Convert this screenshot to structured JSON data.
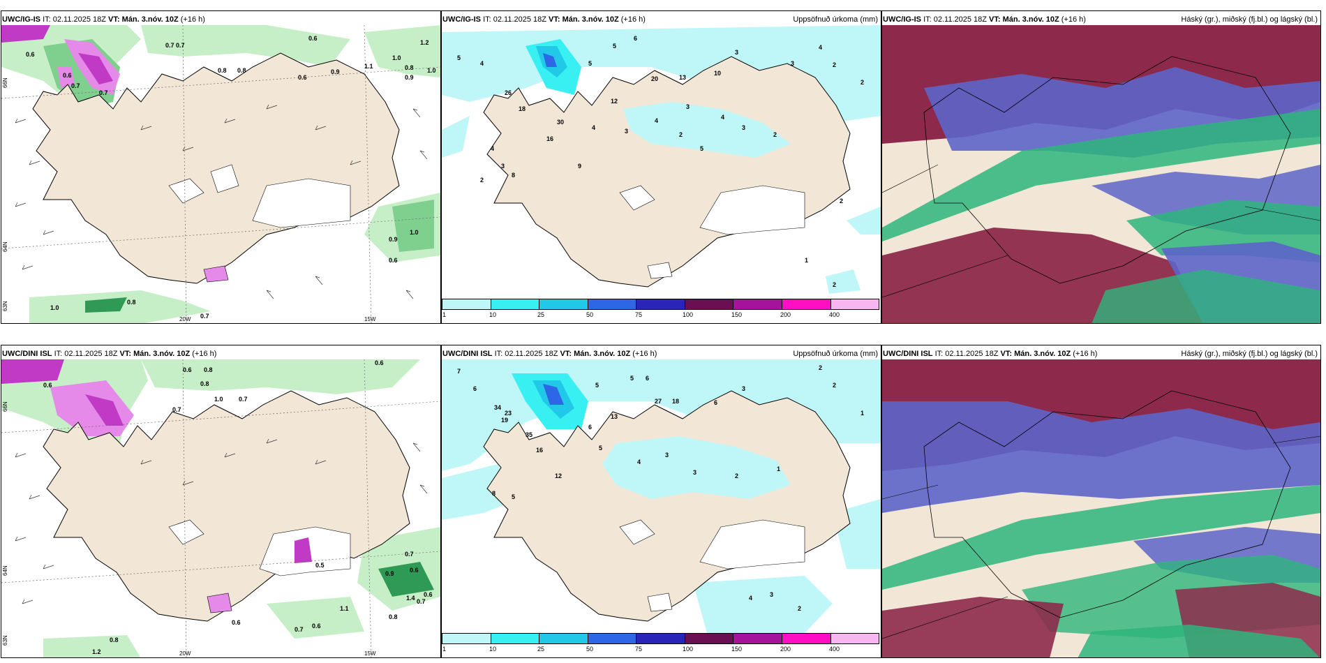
{
  "rows": [
    {
      "model_id": "UWC/IG-IS",
      "wind_panel": {
        "header_model": "UWC/IG-IS",
        "header_it": "IT: 02.11.2025 18Z",
        "header_vt": "VT: Mán. 3.nóv. 10Z",
        "header_lead": "(+16 h)",
        "lat_labels": [
          "66N",
          "64N",
          "63N"
        ],
        "lon_labels": [
          "20W",
          "15W"
        ],
        "values": [
          "0.6",
          "0.7",
          "0.7",
          "0.6",
          "0.8",
          "0.6",
          "0.9",
          "1.1",
          "1.0",
          "0.8",
          "1.2",
          "0.9",
          "0.6",
          "1.0",
          "0.8",
          "0.7",
          "0.7",
          "0.9",
          "1.0",
          "0.6",
          "1.0",
          "0.8",
          "0.7"
        ]
      },
      "precip_panel": {
        "header_model": "UWC/IG-IS",
        "header_it": "IT: 02.11.2025 18Z",
        "header_vt": "VT: Mán. 3.nóv. 10Z",
        "header_lead": "(+16 h)",
        "header_right": "Uppsöfnuð úrkoma (mm)",
        "values": [
          "6",
          "5",
          "5",
          "4",
          "5",
          "12",
          "20",
          "13",
          "10",
          "3",
          "4",
          "3",
          "2",
          "2",
          "3",
          "4",
          "3",
          "2",
          "26",
          "18",
          "30",
          "16",
          "9",
          "4",
          "3",
          "4",
          "2",
          "5",
          "4",
          "3",
          "8",
          "2",
          "2",
          "1",
          "2"
        ],
        "colorbar_labels": [
          "1",
          "10",
          "25",
          "50",
          "75",
          "100",
          "150",
          "200",
          "400"
        ]
      },
      "cloud_panel": {
        "header_model": "UWC/IG-IS",
        "header_it": "IT: 02.11.2025 18Z",
        "header_vt": "VT: Mán. 3.nóv. 10Z",
        "header_lead": "(+16 h)",
        "header_right": "Háský (gr.), miðský (fj.bl.) og lágský (bl.)"
      }
    },
    {
      "model_id": "UWC/DINI ISL",
      "wind_panel": {
        "header_model": "UWC/DINI ISL",
        "header_it": "IT: 02.11.2025 18Z",
        "header_vt": "VT: Mán. 3.nóv. 10Z",
        "header_lead": "(+16 h)",
        "lat_labels": [
          "66N",
          "64N",
          "63N"
        ],
        "lon_labels": [
          "20W",
          "15W"
        ],
        "values": [
          "0.6",
          "0.6",
          "0.8",
          "0.8",
          "0.6",
          "0.7",
          "0.7",
          "1.0",
          "0.5",
          "0.7",
          "0.9",
          "0.6",
          "1.4",
          "0.6",
          "0.7",
          "1.1",
          "0.8",
          "0.6",
          "0.7",
          "0.6",
          "0.8",
          "1.2"
        ]
      },
      "precip_panel": {
        "header_model": "UWC/DINI ISL",
        "header_it": "IT: 02.11.2025 18Z",
        "header_vt": "VT: Mán. 3.nóv. 10Z",
        "header_lead": "(+16 h)",
        "header_right": "Uppsöfnuð úrkoma (mm)",
        "values": [
          "7",
          "6",
          "5",
          "6",
          "5",
          "13",
          "27",
          "18",
          "6",
          "3",
          "2",
          "2",
          "1",
          "34",
          "23",
          "19",
          "35",
          "16",
          "12",
          "6",
          "5",
          "4",
          "3",
          "3",
          "2",
          "1",
          "8",
          "5",
          "4",
          "3",
          "2"
        ],
        "colorbar_labels": [
          "1",
          "10",
          "25",
          "50",
          "75",
          "100",
          "150",
          "200",
          "400"
        ]
      },
      "cloud_panel": {
        "header_model": "UWC/DINI ISL",
        "header_it": "IT: 02.11.2025 18Z",
        "header_vt": "VT: Mán. 3.nóv. 10Z",
        "header_lead": "(+16 h)",
        "header_right": "Háský (gr.), miðský (fj.bl.) og lágský (bl.)"
      }
    }
  ],
  "colors": {
    "land": "#f2e6d6",
    "light_green": "#c7efc7",
    "mid_green": "#7fcf8f",
    "dark_green": "#2f9a55",
    "magenta_light": "#e58ae8",
    "magenta": "#c03ac6",
    "cloud_high_green": "#2eb57c",
    "cloud_mid_blue": "#5d64c9",
    "cloud_low_maroon": "#8d2a4b",
    "colorbar": [
      "#bff6f8",
      "#38f0f2",
      "#21c8e8",
      "#2e67e6",
      "#2a24b8",
      "#6a0f52",
      "#a5129c",
      "#ff0fc4",
      "#f8b6f0"
    ]
  }
}
